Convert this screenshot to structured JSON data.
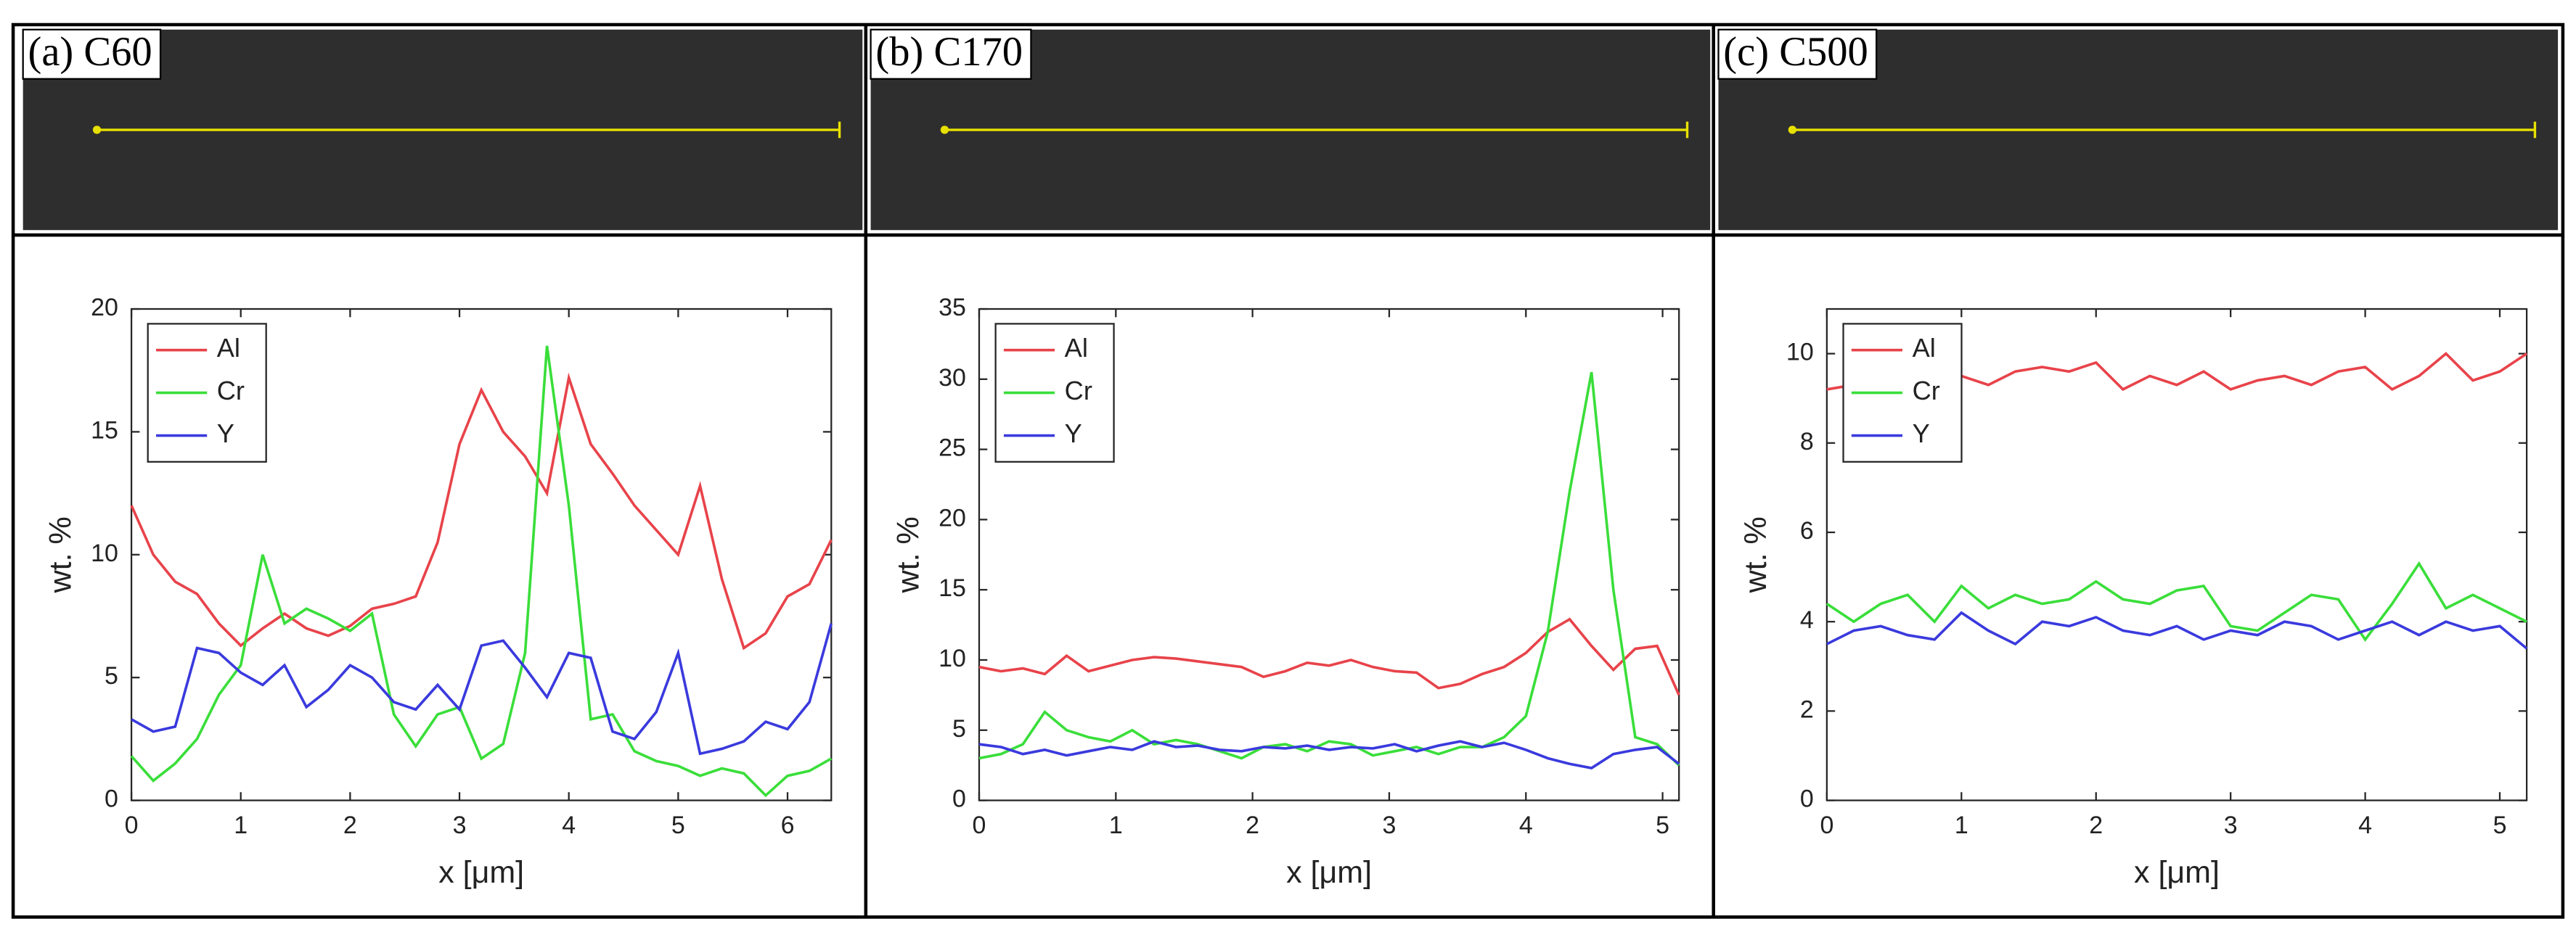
{
  "chart_data": [
    {
      "type": "line",
      "label": "(a) C60",
      "xlabel": "x [μm]",
      "ylabel": "wt. %",
      "x": [
        0,
        0.2,
        0.4,
        0.6,
        0.8,
        1,
        1.2,
        1.4,
        1.6,
        1.8,
        2,
        2.2,
        2.4,
        2.6,
        2.8,
        3,
        3.2,
        3.4,
        3.6,
        3.8,
        4,
        4.2,
        4.4,
        4.6,
        4.8,
        5,
        5.2,
        5.4,
        5.6,
        5.8,
        6,
        6.2,
        6.4
      ],
      "series": [
        {
          "name": "Al",
          "color": "#e8434a",
          "values": [
            12,
            10,
            8.9,
            8.4,
            7.2,
            6.3,
            7.0,
            7.6,
            7.0,
            6.7,
            7.1,
            7.8,
            8.0,
            8.3,
            10.5,
            14.5,
            16.7,
            15.0,
            14.0,
            12.5,
            17.2,
            14.5,
            13.3,
            12.0,
            11.0,
            10.0,
            12.8,
            9.0,
            6.2,
            6.8,
            8.3,
            8.8,
            10.6
          ]
        },
        {
          "name": "Cr",
          "color": "#3ade3a",
          "values": [
            1.8,
            0.8,
            1.5,
            2.5,
            4.3,
            5.5,
            10.0,
            7.2,
            7.8,
            7.4,
            6.9,
            7.6,
            3.5,
            2.2,
            3.5,
            3.8,
            1.7,
            2.3,
            6.0,
            18.5,
            12,
            3.3,
            3.5,
            2.0,
            1.6,
            1.4,
            1.0,
            1.3,
            1.1,
            0.2,
            1.0,
            1.2,
            1.7
          ]
        },
        {
          "name": "Y",
          "color": "#3a3ade",
          "values": [
            3.3,
            2.8,
            3.0,
            6.2,
            6.0,
            5.2,
            4.7,
            5.5,
            3.8,
            4.5,
            5.5,
            5.0,
            4.0,
            3.7,
            4.7,
            3.7,
            6.3,
            6.5,
            5.4,
            4.2,
            6.0,
            5.8,
            2.8,
            2.5,
            3.6,
            6.0,
            1.9,
            2.1,
            2.4,
            3.2,
            2.9,
            4.0,
            7.2
          ]
        }
      ],
      "xlim": [
        0,
        6.4
      ],
      "xticks": [
        0,
        1,
        2,
        3,
        4,
        5,
        6
      ],
      "ylim": [
        0,
        20
      ],
      "yticks": [
        0,
        5,
        10,
        15,
        20
      ],
      "legend": "upper left"
    },
    {
      "type": "line",
      "label": "(b) C170",
      "xlabel": "x [μm]",
      "ylabel": "wt. %",
      "x": [
        0,
        0.16,
        0.32,
        0.48,
        0.64,
        0.8,
        0.96,
        1.12,
        1.28,
        1.44,
        1.6,
        1.76,
        1.92,
        2.08,
        2.24,
        2.4,
        2.56,
        2.72,
        2.88,
        3.04,
        3.2,
        3.36,
        3.52,
        3.68,
        3.84,
        4,
        4.16,
        4.32,
        4.48,
        4.64,
        4.8,
        4.96,
        5.12
      ],
      "series": [
        {
          "name": "Al",
          "color": "#e8434a",
          "values": [
            9.5,
            9.2,
            9.4,
            9.0,
            10.3,
            9.2,
            9.6,
            10.0,
            10.2,
            10.1,
            9.9,
            9.7,
            9.5,
            8.8,
            9.2,
            9.8,
            9.6,
            10.0,
            9.5,
            9.2,
            9.1,
            8.0,
            8.3,
            9.0,
            9.5,
            10.5,
            12.0,
            12.9,
            11.0,
            9.3,
            10.8,
            11.0,
            7.5
          ]
        },
        {
          "name": "Cr",
          "color": "#3ade3a",
          "values": [
            3.0,
            3.3,
            4.0,
            6.3,
            5.0,
            4.5,
            4.2,
            5.0,
            4.0,
            4.3,
            4.0,
            3.5,
            3.0,
            3.8,
            4.0,
            3.5,
            4.2,
            4.0,
            3.2,
            3.5,
            3.8,
            3.3,
            3.8,
            3.8,
            4.5,
            6.0,
            12.0,
            22.0,
            30.5,
            15.0,
            4.5,
            4.0,
            2.5
          ]
        },
        {
          "name": "Y",
          "color": "#3a3ade",
          "values": [
            4.0,
            3.8,
            3.3,
            3.6,
            3.2,
            3.5,
            3.8,
            3.6,
            4.2,
            3.8,
            3.9,
            3.6,
            3.5,
            3.8,
            3.7,
            3.9,
            3.6,
            3.8,
            3.7,
            4.0,
            3.5,
            3.9,
            4.2,
            3.8,
            4.1,
            3.6,
            3.0,
            2.6,
            2.3,
            3.3,
            3.6,
            3.8,
            2.6
          ]
        }
      ],
      "xlim": [
        0,
        5.12
      ],
      "xticks": [
        0,
        1,
        2,
        3,
        4,
        5
      ],
      "ylim": [
        0,
        35
      ],
      "yticks": [
        0,
        5,
        10,
        15,
        20,
        25,
        30,
        35
      ],
      "legend": "upper left"
    },
    {
      "type": "line",
      "label": "(c) C500",
      "xlabel": "x [μm]",
      "ylabel": "wt. %",
      "x": [
        0,
        0.2,
        0.4,
        0.6,
        0.8,
        1,
        1.2,
        1.4,
        1.6,
        1.8,
        2,
        2.2,
        2.4,
        2.6,
        2.8,
        3,
        3.2,
        3.4,
        3.6,
        3.8,
        4,
        4.2,
        4.4,
        4.6,
        4.8,
        5,
        5.2
      ],
      "series": [
        {
          "name": "Al",
          "color": "#e8434a",
          "values": [
            9.2,
            9.3,
            9.5,
            9.4,
            9.2,
            9.5,
            9.3,
            9.6,
            9.7,
            9.6,
            9.8,
            9.2,
            9.5,
            9.3,
            9.6,
            9.2,
            9.4,
            9.5,
            9.3,
            9.6,
            9.7,
            9.2,
            9.5,
            10.0,
            9.4,
            9.6,
            10.0
          ]
        },
        {
          "name": "Cr",
          "color": "#3ade3a",
          "values": [
            4.4,
            4.0,
            4.4,
            4.6,
            4.0,
            4.8,
            4.3,
            4.6,
            4.4,
            4.5,
            4.9,
            4.5,
            4.4,
            4.7,
            4.8,
            3.9,
            3.8,
            4.2,
            4.6,
            4.5,
            3.6,
            4.4,
            5.3,
            4.3,
            4.6,
            4.3,
            4.0
          ]
        },
        {
          "name": "Y",
          "color": "#3a3ade",
          "values": [
            3.5,
            3.8,
            3.9,
            3.7,
            3.6,
            4.2,
            3.8,
            3.5,
            4.0,
            3.9,
            4.1,
            3.8,
            3.7,
            3.9,
            3.6,
            3.8,
            3.7,
            4.0,
            3.9,
            3.6,
            3.8,
            4.0,
            3.7,
            4.0,
            3.8,
            3.9,
            3.4
          ]
        }
      ],
      "xlim": [
        0,
        5.2
      ],
      "xticks": [
        0,
        1,
        2,
        3,
        4,
        5
      ],
      "ylim": [
        0,
        11
      ],
      "yticks": [
        0,
        2,
        4,
        6,
        8,
        10
      ],
      "legend": "upper left"
    }
  ]
}
